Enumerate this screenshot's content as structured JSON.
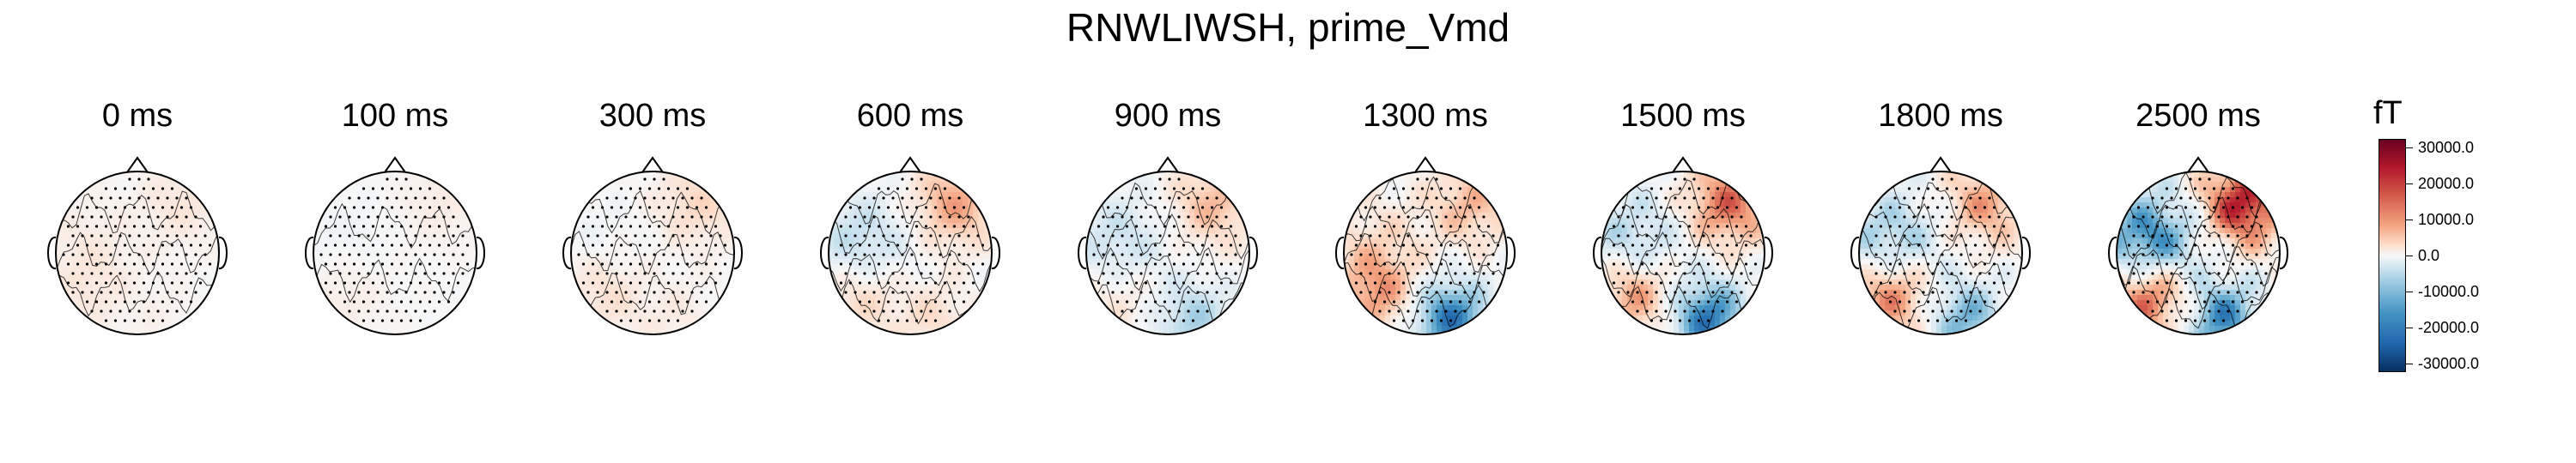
{
  "title": "RNWLIWSH, prime_Vmd",
  "chart_data": {
    "type": "heatmap",
    "title": "RNWLIWSH, prime_Vmd",
    "panels": [
      {
        "label": "0 ms",
        "amplitude": 0.15,
        "field": [
          0.15,
          0.1,
          0.1,
          0.05
        ]
      },
      {
        "label": "100 ms",
        "amplitude": 0.1,
        "field": [
          0.1,
          -0.05,
          0.1,
          0.0
        ]
      },
      {
        "label": "300 ms",
        "amplitude": 0.25,
        "field": [
          0.25,
          -0.05,
          0.2,
          0.1
        ]
      },
      {
        "label": "600 ms",
        "amplitude": 0.4,
        "field": [
          0.5,
          -0.35,
          0.3,
          0.2
        ]
      },
      {
        "label": "900 ms",
        "amplitude": 0.45,
        "field": [
          0.4,
          -0.3,
          0.2,
          -0.4
        ]
      },
      {
        "label": "1300 ms",
        "amplitude": 0.65,
        "field": [
          0.4,
          0.2,
          0.5,
          -0.9
        ]
      },
      {
        "label": "1500 ms",
        "amplitude": 0.75,
        "field": [
          0.7,
          -0.4,
          0.6,
          -0.9
        ]
      },
      {
        "label": "1800 ms",
        "amplitude": 0.8,
        "field": [
          0.5,
          -0.5,
          0.7,
          -0.6
        ]
      },
      {
        "label": "2500 ms",
        "amplitude": 1.0,
        "field": [
          1.0,
          -0.9,
          0.9,
          -0.8
        ]
      }
    ],
    "colorbar": {
      "unit": "fT",
      "vmin": -30000,
      "vmax": 30000,
      "ticks": [
        "30000.0",
        "20000.0",
        "10000.0",
        "0.0",
        "-10000.0",
        "-20000.0",
        "-30000.0"
      ],
      "tick_values": [
        30000,
        20000,
        10000,
        0,
        -10000,
        -20000,
        -30000
      ],
      "colormap": [
        "#053061",
        "#2166ac",
        "#4393c3",
        "#92c5de",
        "#d1e5f0",
        "#f7f7f7",
        "#fddbc7",
        "#f4a582",
        "#d6604d",
        "#b2182b",
        "#67001f"
      ]
    }
  }
}
